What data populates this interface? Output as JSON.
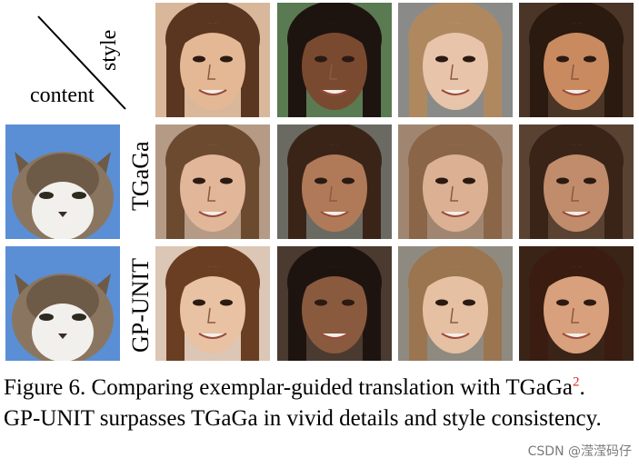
{
  "corner": {
    "style_label": "style",
    "content_label": "content"
  },
  "rows": [
    {
      "label": ""
    },
    {
      "label": "TGaGa"
    },
    {
      "label": "GP-UNIT"
    }
  ],
  "caption": {
    "line1_prefix": "Figure 6.  Comparing exemplar-guided translation with TGaGa",
    "footnote": "2",
    "line1_suffix": ".",
    "line2": "GP-UNIT surpasses TGaGa in vivid details and style consistency."
  },
  "watermark": "CSDN @滢滢码仔",
  "colors": {
    "sky": "#5a8fd6",
    "cat_white": "#f2f0ec",
    "cat_tabby": "#6d5b48",
    "skin_light": "#e8c1a4",
    "skin_medium": "#c28a66",
    "skin_dark": "#7a4a30",
    "hair_dark": "#2b1a12",
    "hair_brown": "#6b4528",
    "hair_blonde": "#b58c5a",
    "footnote_red": "#d62d20"
  },
  "tiles": [
    {
      "id": "style-1",
      "skin": "#e4b894",
      "hair": "#5a3520",
      "bg": "#d9b79a"
    },
    {
      "id": "style-2",
      "skin": "#7a4a30",
      "hair": "#1e140f",
      "bg": "#5a7a52"
    },
    {
      "id": "style-3",
      "skin": "#e7c4aa",
      "hair": "#b08860",
      "bg": "#8a8b88"
    },
    {
      "id": "style-4",
      "skin": "#c98a60",
      "hair": "#2a1a10",
      "bg": "#4a3526"
    },
    {
      "id": "tgaga-1",
      "skin": "#e2b699",
      "hair": "#6b4a30",
      "bg": "#b59a85"
    },
    {
      "id": "tgaga-2",
      "skin": "#b07a58",
      "hair": "#3a2418",
      "bg": "#6b6a62"
    },
    {
      "id": "tgaga-3",
      "skin": "#dcb093",
      "hair": "#8a6548",
      "bg": "#a08671"
    },
    {
      "id": "tgaga-4",
      "skin": "#c08c6b",
      "hair": "#3a2418",
      "bg": "#5a4232"
    },
    {
      "id": "gpunit-1",
      "skin": "#e9c2a4",
      "hair": "#6a3e22",
      "bg": "#dcc6b5"
    },
    {
      "id": "gpunit-2",
      "skin": "#8a5a3e",
      "hair": "#1e140f",
      "bg": "#4a3a30"
    },
    {
      "id": "gpunit-3",
      "skin": "#e6c0a2",
      "hair": "#9a7550",
      "bg": "#8f8a80"
    },
    {
      "id": "gpunit-4",
      "skin": "#d8a07c",
      "hair": "#3a1c10",
      "bg": "#3a2418"
    }
  ]
}
